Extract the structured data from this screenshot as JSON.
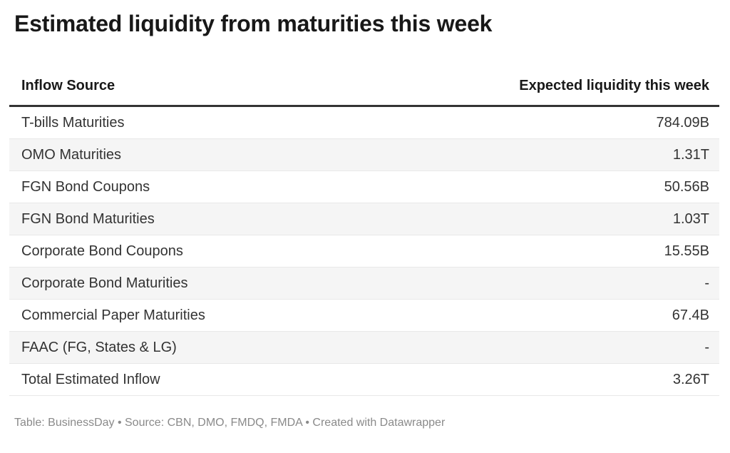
{
  "title": "Estimated liquidity from maturities this week",
  "chart_data": {
    "type": "table",
    "title": "Estimated liquidity from maturities this week",
    "columns": [
      "Inflow Source",
      "Expected liquidity this week"
    ],
    "rows": [
      [
        "T-bills Maturities",
        "784.09B"
      ],
      [
        "OMO Maturities",
        "1.31T"
      ],
      [
        "FGN Bond Coupons",
        "50.56B"
      ],
      [
        "FGN Bond Maturities",
        "1.03T"
      ],
      [
        "Corporate Bond Coupons",
        "15.55B"
      ],
      [
        "Corporate Bond Maturities",
        "-"
      ],
      [
        "Commercial Paper Maturities",
        "67.4B"
      ],
      [
        "FAAC (FG, States & LG)",
        "-"
      ],
      [
        "Total Estimated Inflow",
        "3.26T"
      ]
    ],
    "layout": {
      "striped_rows": true,
      "header_rule": "3px solid dark",
      "value_column_align": "right"
    }
  },
  "footer": {
    "text": "Table: BusinessDay • Source: CBN, DMO, FMDQ, FMDA • Created with Datawrapper"
  },
  "colors": {
    "background": "#ffffff",
    "title_text": "#181818",
    "header_text": "#191919",
    "row_text": "#333333",
    "stripe": "#f5f5f5",
    "row_border": "#e8e8e8",
    "header_border": "#333333",
    "footer_text": "#8a8a8a"
  }
}
